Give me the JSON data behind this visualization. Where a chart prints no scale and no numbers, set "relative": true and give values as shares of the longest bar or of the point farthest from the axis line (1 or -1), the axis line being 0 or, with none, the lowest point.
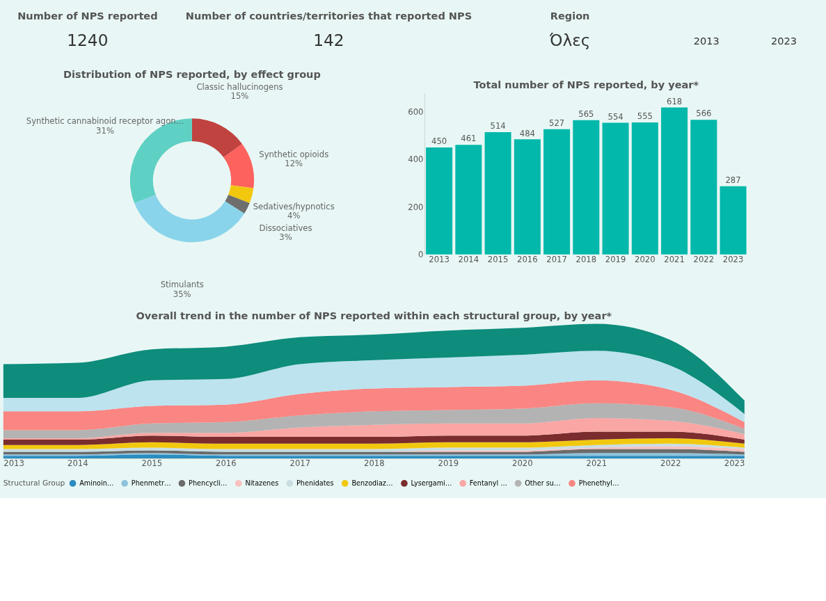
{
  "chart_data": [
    {
      "type": "other",
      "title": "Number of NPS reported",
      "annotations": [
        "1240"
      ]
    },
    {
      "type": "other",
      "title": "Number of countries/territories that reported NPS",
      "annotations": [
        "142"
      ]
    },
    {
      "type": "other",
      "title": "Region",
      "annotations": [
        "Όλες"
      ]
    },
    {
      "type": "other",
      "annotations": [
        "2013",
        "2023"
      ]
    },
    {
      "type": "donut",
      "title": "Distribution of NPS reported, by effect group",
      "categories": [
        "Classic hallucinogens",
        "Synthetic opioids",
        "Sedatives/hypnotics",
        "Dissociatives",
        "Stimulants",
        "Synthetic cannabinoid receptor agon…"
      ],
      "values": [
        15,
        12,
        4,
        3,
        35,
        31
      ],
      "value_labels": [
        "15%",
        "12%",
        "4%",
        "3%",
        "35%",
        "31%"
      ],
      "colors": [
        "#c0433f",
        "#fd625e",
        "#f2c80f",
        "#6e6e6e",
        "#8ad4eb",
        "#5fd0c4"
      ]
    },
    {
      "type": "bar",
      "title": "Total number of NPS reported, by year*",
      "categories": [
        "2013",
        "2014",
        "2015",
        "2016",
        "2017",
        "2018",
        "2019",
        "2020",
        "2021",
        "2022",
        "2023"
      ],
      "values": [
        450,
        461,
        514,
        484,
        527,
        565,
        554,
        555,
        618,
        566,
        287
      ],
      "color": "#01b8aa",
      "ylim": [
        0,
        680
      ],
      "yticks": [
        0,
        200,
        400,
        600
      ],
      "data_labels": true
    },
    {
      "type": "area",
      "title": "Overall trend in the number of NPS reported within each structural group, by year*",
      "stacked": true,
      "relative": true,
      "x": [
        2013,
        2014,
        2015,
        2016,
        2017,
        2018,
        2019,
        2020,
        2021,
        2022,
        2023
      ],
      "xlim": [
        2013,
        2023
      ],
      "xticks": [
        2013,
        2014,
        2015,
        2016,
        2017,
        2018,
        2019,
        2020,
        2021,
        2022,
        2023
      ],
      "legend": "bottom",
      "legend_title": "Structural Group",
      "series": [
        {
          "name": "Aminoin…",
          "color": "#2b8cbe",
          "values": [
            0.02,
            0.02,
            0.03,
            0.02,
            0.02,
            0.02,
            0.02,
            0.02,
            0.02,
            0.02,
            0.02
          ]
        },
        {
          "name": "Phenmetr…",
          "color": "#8fc3dd",
          "values": [
            0.01,
            0.01,
            0.01,
            0.01,
            0.01,
            0.01,
            0.01,
            0.01,
            0.02,
            0.02,
            0.01
          ]
        },
        {
          "name": "Phencycli…",
          "color": "#6b6b6b",
          "values": [
            0.02,
            0.02,
            0.02,
            0.02,
            0.02,
            0.02,
            0.02,
            0.02,
            0.03,
            0.03,
            0.02
          ]
        },
        {
          "name": "Nitazenes",
          "color": "#f9c0c0",
          "values": [
            0,
            0,
            0,
            0,
            0,
            0,
            0.01,
            0.01,
            0.01,
            0.02,
            0.02
          ]
        },
        {
          "name": "Phenidates",
          "color": "#c9dde2",
          "values": [
            0.02,
            0.02,
            0.02,
            0.02,
            0.02,
            0.02,
            0.02,
            0.02,
            0.02,
            0.02,
            0.01
          ]
        },
        {
          "name": "Benzodiaz…",
          "color": "#f2c80f",
          "values": [
            0.03,
            0.03,
            0.04,
            0.04,
            0.04,
            0.04,
            0.04,
            0.04,
            0.04,
            0.04,
            0.03
          ]
        },
        {
          "name": "Lysergami…",
          "color": "#7b2c2c",
          "values": [
            0.04,
            0.04,
            0.05,
            0.05,
            0.05,
            0.05,
            0.05,
            0.05,
            0.06,
            0.05,
            0.03
          ]
        },
        {
          "name": "Fentanyl …",
          "color": "#f9a6a4",
          "values": [
            0.01,
            0.01,
            0.02,
            0.03,
            0.07,
            0.09,
            0.09,
            0.09,
            0.1,
            0.08,
            0.04
          ]
        },
        {
          "name": "Other su…",
          "color": "#b3b3b3",
          "values": [
            0.06,
            0.06,
            0.07,
            0.08,
            0.09,
            0.1,
            0.1,
            0.11,
            0.11,
            0.1,
            0.04
          ]
        },
        {
          "name": "Phenethyl…",
          "color": "#f98683",
          "values": [
            0.14,
            0.14,
            0.13,
            0.13,
            0.16,
            0.17,
            0.17,
            0.17,
            0.17,
            0.13,
            0.05
          ]
        },
        {
          "color": "#bde3ef",
          "values": [
            0.1,
            0.1,
            0.19,
            0.19,
            0.22,
            0.21,
            0.22,
            0.23,
            0.22,
            0.18,
            0.06
          ]
        },
        {
          "color": "#0e8c7c",
          "values": [
            0.25,
            0.26,
            0.23,
            0.24,
            0.2,
            0.19,
            0.2,
            0.2,
            0.2,
            0.19,
            0.1
          ]
        }
      ]
    }
  ]
}
